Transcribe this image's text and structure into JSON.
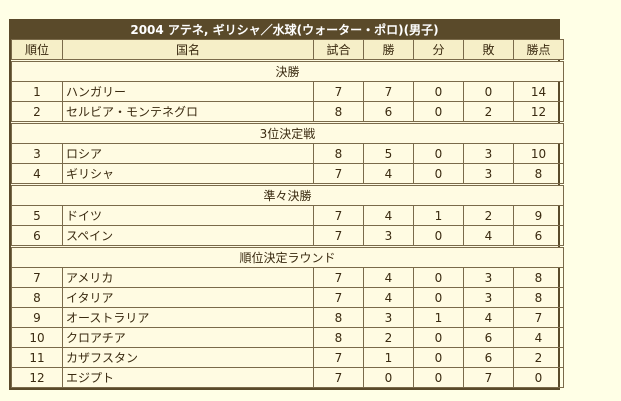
{
  "title": "2004 アテネ, ギリシャ／水球(ウォーター・ポロ)(男子)",
  "headers": {
    "rank": "順位",
    "country": "国名",
    "played": "試合",
    "won": "勝",
    "drawn": "分",
    "lost": "敗",
    "points": "勝点"
  },
  "sections": [
    {
      "label": "決勝",
      "rows": [
        {
          "rank": "1",
          "country": "ハンガリー",
          "played": "7",
          "won": "7",
          "drawn": "0",
          "lost": "0",
          "points": "14"
        },
        {
          "rank": "2",
          "country": "セルビア・モンテネグロ",
          "played": "8",
          "won": "6",
          "drawn": "0",
          "lost": "2",
          "points": "12"
        }
      ]
    },
    {
      "label": "3位決定戦",
      "rows": [
        {
          "rank": "3",
          "country": "ロシア",
          "played": "8",
          "won": "5",
          "drawn": "0",
          "lost": "3",
          "points": "10"
        },
        {
          "rank": "4",
          "country": "ギリシャ",
          "played": "7",
          "won": "4",
          "drawn": "0",
          "lost": "3",
          "points": "8"
        }
      ]
    },
    {
      "label": "準々決勝",
      "rows": [
        {
          "rank": "5",
          "country": "ドイツ",
          "played": "7",
          "won": "4",
          "drawn": "1",
          "lost": "2",
          "points": "9"
        },
        {
          "rank": "6",
          "country": "スペイン",
          "played": "7",
          "won": "3",
          "drawn": "0",
          "lost": "4",
          "points": "6"
        }
      ]
    },
    {
      "label": "順位決定ラウンド",
      "rows": [
        {
          "rank": "7",
          "country": "アメリカ",
          "played": "7",
          "won": "4",
          "drawn": "0",
          "lost": "3",
          "points": "8"
        },
        {
          "rank": "8",
          "country": "イタリア",
          "played": "7",
          "won": "4",
          "drawn": "0",
          "lost": "3",
          "points": "8"
        },
        {
          "rank": "9",
          "country": "オーストラリア",
          "played": "8",
          "won": "3",
          "drawn": "1",
          "lost": "4",
          "points": "7"
        },
        {
          "rank": "10",
          "country": "クロアチア",
          "played": "8",
          "won": "2",
          "drawn": "0",
          "lost": "6",
          "points": "4"
        },
        {
          "rank": "11",
          "country": "カザフスタン",
          "played": "7",
          "won": "1",
          "drawn": "0",
          "lost": "6",
          "points": "2"
        },
        {
          "rank": "12",
          "country": "エジプト",
          "played": "7",
          "won": "0",
          "drawn": "0",
          "lost": "7",
          "points": "0"
        }
      ]
    }
  ]
}
